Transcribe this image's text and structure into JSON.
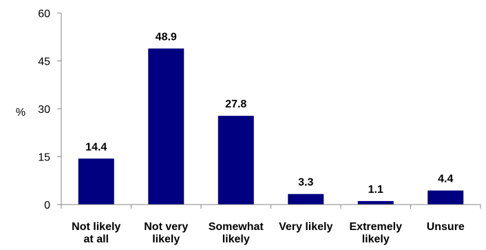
{
  "chart_data": {
    "type": "bar",
    "categories": [
      [
        "Not likely",
        "at all"
      ],
      [
        "Not very",
        "likely"
      ],
      [
        "Somewhat",
        "likely"
      ],
      [
        "Very likely"
      ],
      [
        "Extremely",
        "likely"
      ],
      [
        "Unsure"
      ]
    ],
    "values": [
      14.4,
      48.9,
      27.8,
      3.3,
      1.1,
      4.4
    ],
    "value_labels": [
      "14.4",
      "48.9",
      "27.8",
      "3.3",
      "1.1",
      "4.4"
    ],
    "ylabel": "%",
    "ylim": [
      0,
      60
    ],
    "yticks": [
      0,
      15,
      30,
      45,
      60
    ],
    "ytick_labels": [
      "0",
      "15",
      "30",
      "45",
      "60"
    ],
    "bar_color": "#000080",
    "grid": false,
    "legend": "none"
  }
}
